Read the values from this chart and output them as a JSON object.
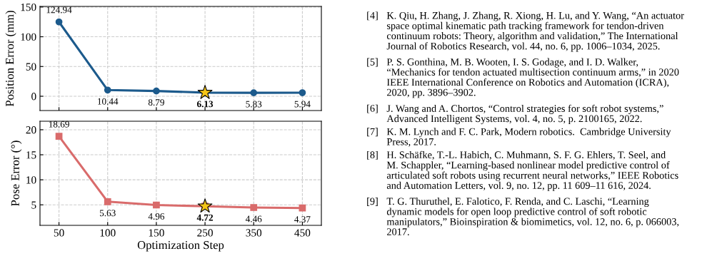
{
  "chart_data": [
    {
      "type": "line",
      "ylabel": "Position Error (mm)",
      "categories": [
        "50",
        "100",
        "150",
        "250",
        "350",
        "450"
      ],
      "ylim": [
        -24,
        151
      ],
      "yticks": [
        0,
        50,
        100,
        150
      ],
      "tick_labels": "y",
      "grid": true,
      "marker": "circle",
      "line_style": "solid",
      "series": [
        {
          "color": "#1c5a8c",
          "values": [
            124.94,
            10.44,
            8.79,
            6.13,
            5.83,
            5.94
          ],
          "value_labels": [
            "124.94",
            "10.44",
            "8.79",
            null,
            "5.83",
            "5.94"
          ]
        },
        {
          "type": "scatter",
          "x": [
            "250"
          ],
          "color": "#f5c518",
          "marker": "star",
          "values": [
            6.13
          ],
          "value_labels": [
            "6.13"
          ]
        }
      ]
    },
    {
      "type": "line",
      "ylabel": "Pose Error (°)",
      "xlabel": "Optimization Step",
      "categories": [
        "50",
        "100",
        "150",
        "250",
        "350",
        "450"
      ],
      "ylim": [
        0.9,
        21.7
      ],
      "yticks": [
        5,
        10,
        15,
        20
      ],
      "grid": true,
      "marker": "square",
      "line_style": "solid",
      "series": [
        {
          "color": "#d96b6b",
          "values": [
            18.69,
            5.63,
            4.96,
            4.72,
            4.46,
            4.37
          ],
          "value_labels": [
            "18.69",
            "5.63",
            "4.96",
            null,
            "4.46",
            "4.37"
          ]
        },
        {
          "type": "scatter",
          "x": [
            "250"
          ],
          "color": "#f5c518",
          "marker": "star",
          "values": [
            4.72
          ],
          "value_labels": [
            "4.72"
          ]
        }
      ]
    },
    {
      "type": "other",
      "annotations": [
        "[4] K. Qiu, H. Zhang, J. Zhang, R. Xiong, H. Lu, and Y. Wang, “An actuator\nspace optimal kinematic path tracking framework for tendon-driven\ncontinuum robots: Theory, algorithm and validation,” The International\nJournal of Robotics Research, vol. 44, no. 6, pp. 1006–1034, 2025.",
        "[5] P. S. Gonthina, M. B. Wooten, I. S. Godage, and I. D. Walker,\n“Mechanics for tendon actuated multisection continuum arms,” in 2020\nIEEE International Conference on Robotics and Automation (ICRA),\n2020, pp. 3896–3902.",
        "[6] J. Wang and A. Chortos, “Control strategies for soft robot systems,”\nAdvanced Intelligent Systems, vol. 4, no. 5, p. 2100165, 2022.",
        "[7] K. M. Lynch and F. C. Park, Modern robotics.  Cambridge University\nPress, 2017.",
        "[8] H. Schäfke, T.-L. Habich, C. Muhmann, S. F. G. Ehlers, T. Seel, and\nM. Schappler, “Learning-based nonlinear model predictive control of\narticulated soft robots using recurrent neural networks,” IEEE Robotics\nand Automation Letters, vol. 9, no. 12, pp. 11 609–11 616, 2024.",
        "[9] T. G. Thuruthel, E. Falotico, F. Renda, and C. Laschi, “Learning\ndynamic models for open loop predictive control of soft robotic\nmanipulators,” Bioinspiration & biomimetics, vol. 12, no. 6, p. 066003,\n2017."
      ]
    }
  ]
}
